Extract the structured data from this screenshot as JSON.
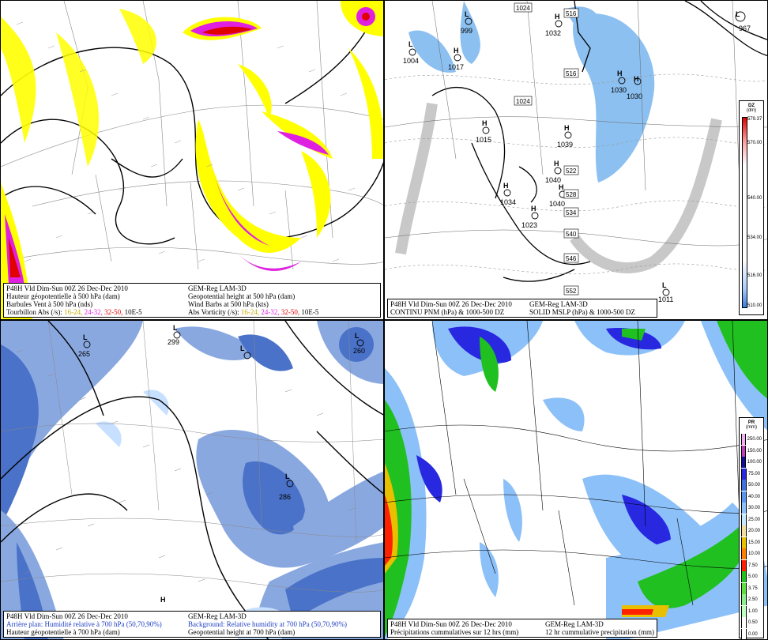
{
  "panels": {
    "p1": {
      "caption": {
        "row1_left": "P48H Vld Dim-Sun 00Z 26 Dec-Dec 2010",
        "row1_right": "GEM-Reg LAM-3D",
        "row2_left": "Hauteur géopotentielle à 500 hPa (dam)",
        "row2_right": "Geopotential height at 500 hPa (dam)",
        "row3_left": "Barbules Vent à 500 hPa (nds)",
        "row3_right": "Wind Barbs at 500 hPa  (kts)",
        "row4_left_label": "Tourbillon Abs (/s):",
        "row4_right_label": "Abs Vorticity (/s):",
        "ranges": [
          "16-24,",
          "24-32,",
          "32-50,",
          "10E-5"
        ],
        "range_colors": [
          "#c8a800",
          "#e020e0",
          "#e00000",
          "#000000"
        ]
      }
    },
    "p2": {
      "caption": {
        "row1_left": "P48H Vld Dim-Sun 00Z 26 Dec-Dec 2010",
        "row1_right": "GEM-Reg LAM-3D",
        "row2_left": "CONTINU PNM  (hPa) & 1000-500 DZ",
        "row2_right": "SOLID   MSLP (hPa) & 1000-500 DZ"
      },
      "legend": {
        "title": "DZ",
        "unit": "(dm)",
        "labels": [
          "579.37",
          "570.00",
          "540.00",
          "534.00",
          "516.00",
          "510.00"
        ]
      },
      "highs": [
        {
          "label": "H",
          "value": "1032"
        },
        {
          "label": "H",
          "value": "1017"
        },
        {
          "label": "H",
          "value": "1015"
        },
        {
          "label": "H",
          "value": "1039"
        },
        {
          "label": "H",
          "value": "1040"
        },
        {
          "label": "H",
          "value": "1034"
        },
        {
          "label": "H",
          "value": "1040"
        },
        {
          "label": "H",
          "value": "1030"
        },
        {
          "label": "H",
          "value": "1030"
        },
        {
          "label": "H",
          "value": "1023"
        }
      ],
      "lows": [
        {
          "label": "L",
          "value": "999"
        },
        {
          "label": "L",
          "value": "1004"
        },
        {
          "label": "L",
          "value": "967"
        },
        {
          "label": "L",
          "value": "1011"
        }
      ],
      "boxes": [
        "1024",
        "516",
        "516",
        "1024",
        "522",
        "528",
        "534",
        "540",
        "546",
        "552"
      ]
    },
    "p3": {
      "caption": {
        "row1_left": "P48H Vld Dim-Sun 00Z 26 Dec-Dec 2010",
        "row1_right": "GEM-Reg LAM-3D",
        "row2_left": "Arrière plan: Humidité relative à 700 hPa (50,70,90%)",
        "row2_right": "Background: Relative humidity at 700 hPa (50,70,90%)",
        "row3_left": "Hauteur géopotentielle à 700 hPa (dam)",
        "row3_right": "Geopotential height at 700 hPa (dam)"
      },
      "lows": [
        {
          "label": "L",
          "value": "265"
        },
        {
          "label": "L",
          "value": "299"
        },
        {
          "label": "L",
          "value": "260"
        },
        {
          "label": "L",
          "value": "286"
        }
      ],
      "highs": [
        {
          "label": "H",
          "value": ""
        }
      ]
    },
    "p4": {
      "caption": {
        "row1_left": "P48H Vld Dim-Sun 00Z 26 Dec-Dec 2010",
        "row1_right": "GEM-Reg LAM-3D",
        "row2_left": "Précipitations cummulatives sur 12 hrs (mm)",
        "row2_right": "12 hr cummulative precipitation     (mm)"
      },
      "legend": {
        "title": "PR",
        "unit": "(mm)",
        "labels": [
          "250.00",
          "150.00",
          "100.00",
          "75.00",
          "50.00",
          "40.00",
          "30.00",
          "25.00",
          "20.00",
          "15.00",
          "10.00",
          "7.50",
          "5.00",
          "3.75",
          "2.50",
          "1.00",
          "0.50",
          "0.00"
        ],
        "colors": [
          "#f2b0f2",
          "#c040c0",
          "#1010a0",
          "#2828e0",
          "#3e70e0",
          "#5a96f0",
          "#8cc0f8",
          "#c8e8ff",
          "#f0e0a0",
          "#e8c000",
          "#ff8000",
          "#ff2000",
          "#20c020",
          "#60e040",
          "#90f090",
          "#c0ffc0",
          "#ffffff",
          "#ffffff"
        ]
      }
    }
  }
}
